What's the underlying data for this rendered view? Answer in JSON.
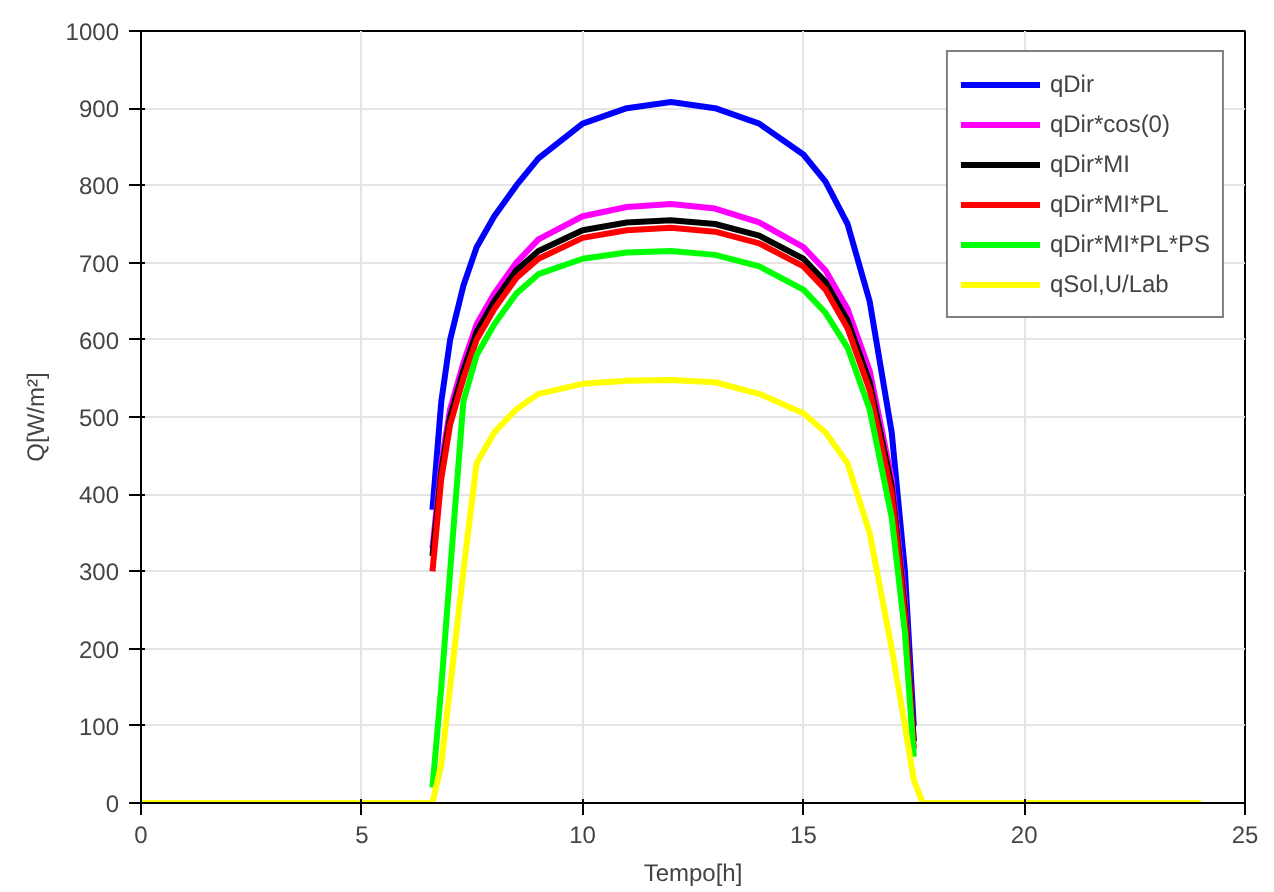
{
  "chart_data": {
    "type": "line",
    "xlabel": "Tempo[h]",
    "ylabel": "Q[W/m²]",
    "x": [
      0,
      6.4,
      6.6,
      6.8,
      7,
      7.3,
      7.6,
      8,
      8.5,
      9,
      10,
      11,
      12,
      13,
      14,
      15,
      15.5,
      16,
      16.5,
      17,
      17.3,
      17.5,
      17.7,
      24
    ],
    "series": [
      {
        "name": "qDir",
        "color": "#0000ff",
        "values": [
          null,
          null,
          380,
          520,
          600,
          670,
          720,
          760,
          800,
          835,
          880,
          900,
          908,
          900,
          880,
          840,
          805,
          750,
          650,
          480,
          300,
          100,
          null,
          null
        ]
      },
      {
        "name": "qDir*cos(0)",
        "color": "#ff00ff",
        "values": [
          null,
          null,
          330,
          440,
          510,
          570,
          620,
          660,
          700,
          730,
          760,
          772,
          776,
          770,
          752,
          720,
          690,
          640,
          560,
          420,
          260,
          80,
          null,
          null
        ]
      },
      {
        "name": "qDir*MI",
        "color": "#000000",
        "values": [
          null,
          null,
          320,
          430,
          500,
          560,
          610,
          650,
          690,
          715,
          742,
          752,
          755,
          750,
          735,
          705,
          675,
          625,
          545,
          410,
          250,
          80,
          null,
          null
        ]
      },
      {
        "name": "qDir*MI*PL",
        "color": "#ff0000",
        "values": [
          null,
          null,
          300,
          420,
          490,
          550,
          600,
          640,
          680,
          705,
          732,
          742,
          745,
          740,
          725,
          695,
          665,
          615,
          535,
          400,
          240,
          70,
          null,
          null
        ]
      },
      {
        "name": "qDir*MI*PL*PS",
        "color": "#00ff00",
        "values": [
          null,
          null,
          20,
          150,
          300,
          520,
          580,
          620,
          660,
          685,
          705,
          713,
          715,
          710,
          695,
          665,
          635,
          590,
          510,
          370,
          220,
          60,
          null,
          null
        ]
      },
      {
        "name": "qSol,U/Lab",
        "color": "#ffff00",
        "values": [
          0,
          0,
          0,
          50,
          150,
          300,
          440,
          480,
          510,
          530,
          543,
          547,
          548,
          545,
          530,
          505,
          480,
          440,
          350,
          200,
          100,
          30,
          0,
          0
        ]
      }
    ],
    "xlim": [
      0,
      25
    ],
    "xticks": [
      0,
      5,
      10,
      15,
      20,
      25
    ],
    "ylim": [
      0,
      1000
    ],
    "yticks": [
      0,
      100,
      200,
      300,
      400,
      500,
      600,
      700,
      800,
      900,
      1000
    ],
    "grid": true,
    "legend": "top right",
    "marker": "none",
    "line_style": "solid"
  }
}
